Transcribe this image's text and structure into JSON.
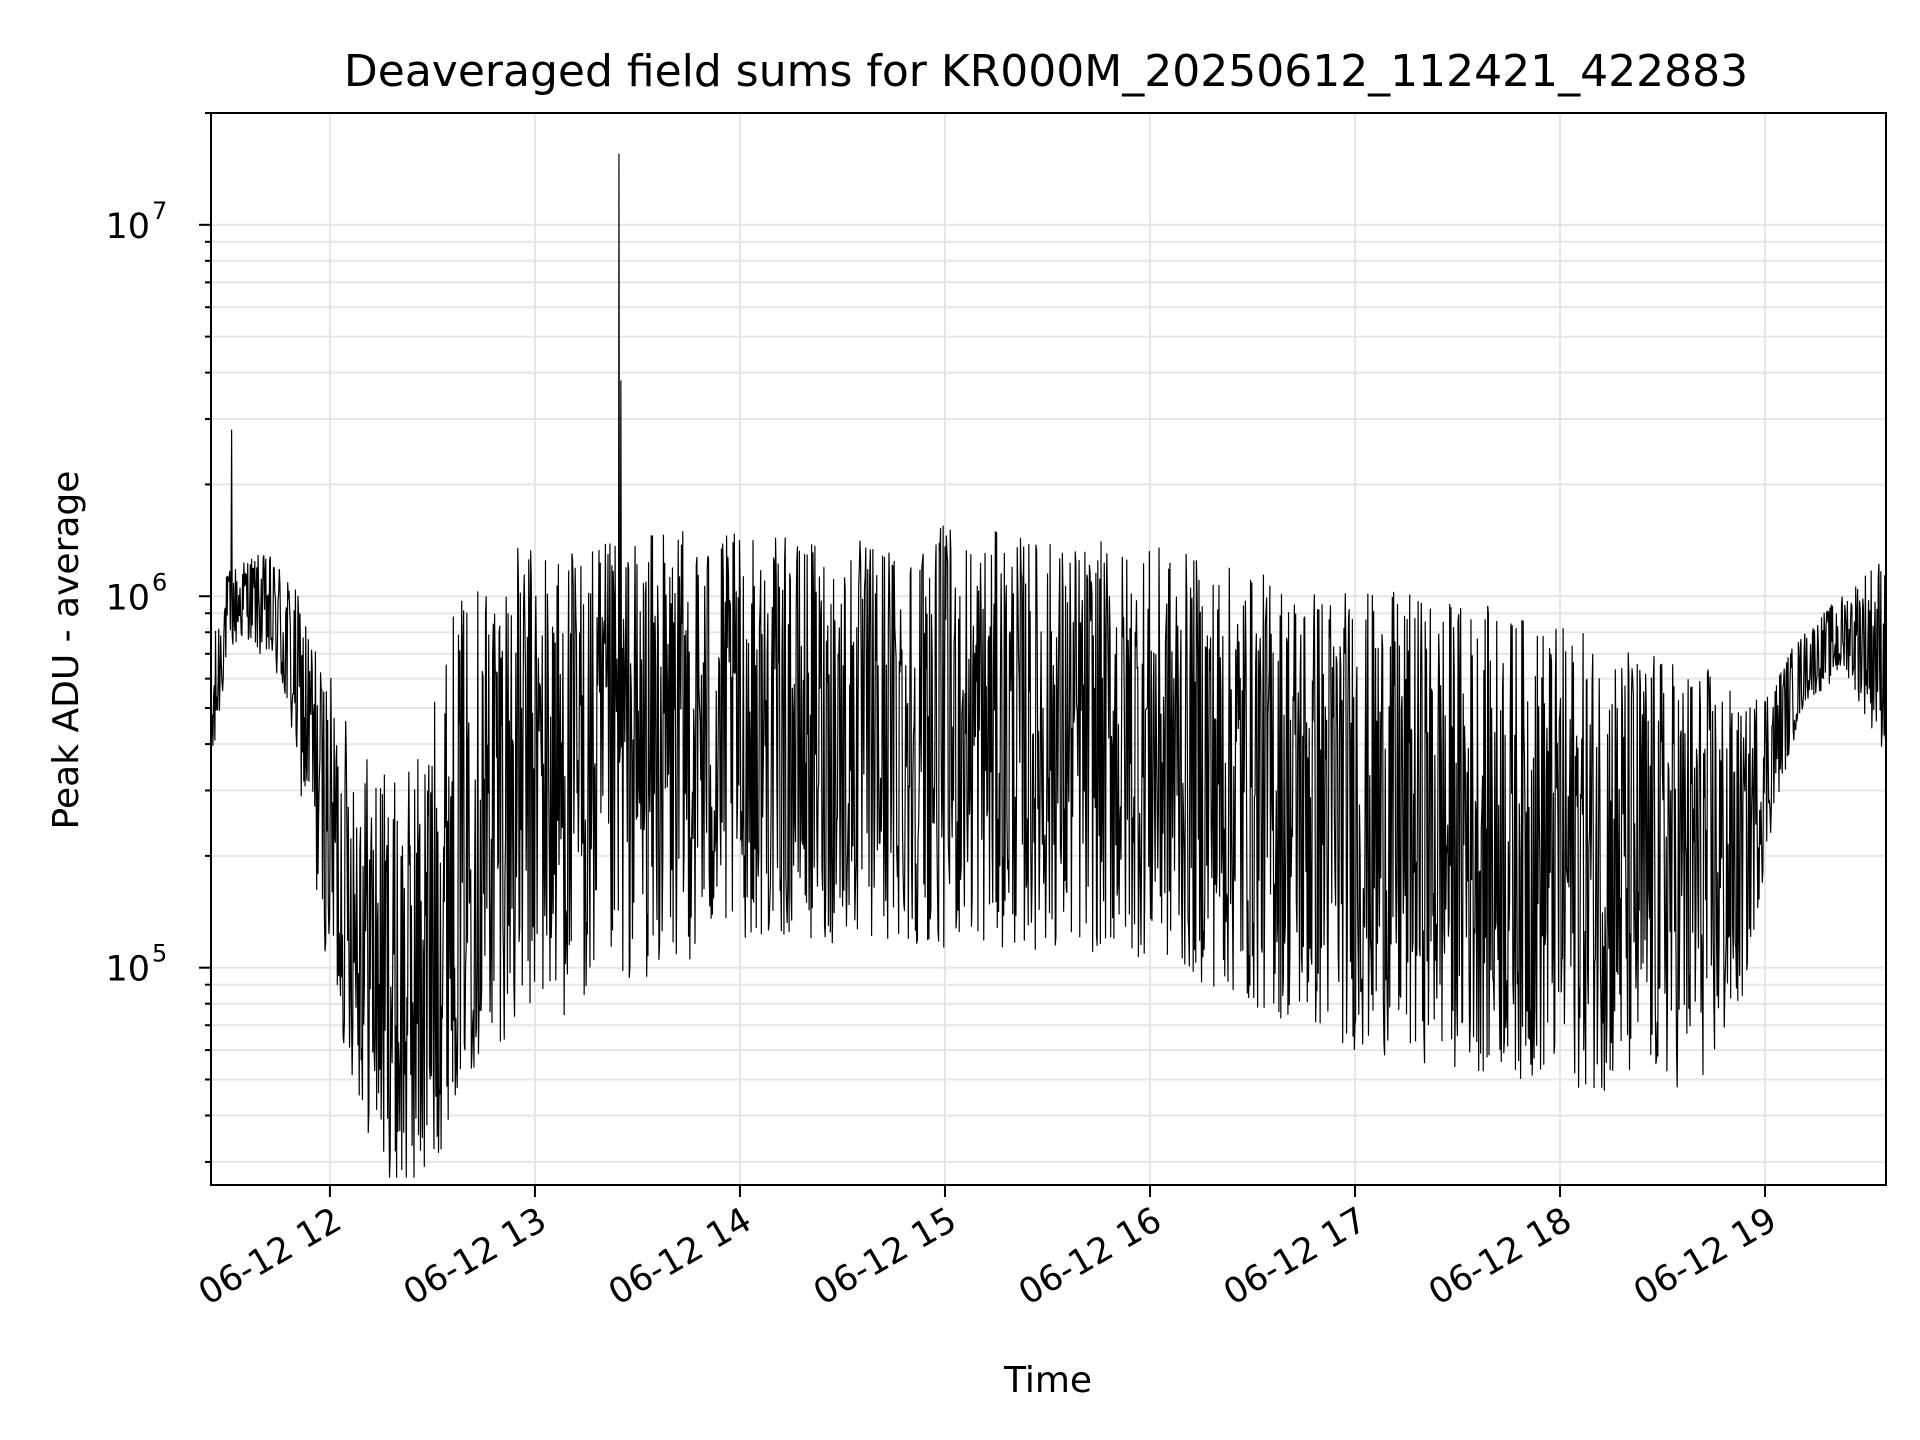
{
  "chart_data": {
    "type": "line",
    "title": "Deaveraged field sums for KR000M_20250612_112421_422883",
    "xlabel": "Time",
    "ylabel": "Peak ADU - average",
    "yscale": "log",
    "ylim": [
      26000,
      20000000
    ],
    "xlim_hours": [
      11.42,
      19.59
    ],
    "grid": true,
    "line_color": "#000000",
    "grid_color": "#e6e6e6",
    "x_ticks": [
      {
        "hour": 12,
        "label": "06-12 12"
      },
      {
        "hour": 13,
        "label": "06-12 13"
      },
      {
        "hour": 14,
        "label": "06-12 14"
      },
      {
        "hour": 15,
        "label": "06-12 15"
      },
      {
        "hour": 16,
        "label": "06-12 16"
      },
      {
        "hour": 17,
        "label": "06-12 17"
      },
      {
        "hour": 18,
        "label": "06-12 18"
      },
      {
        "hour": 19,
        "label": "06-12 19"
      }
    ],
    "y_ticks": [
      {
        "value": 100000,
        "base": "10",
        "exp": "5"
      },
      {
        "value": 1000000,
        "base": "10",
        "exp": "6"
      },
      {
        "value": 10000000,
        "base": "10",
        "exp": "7"
      }
    ],
    "envelope": {
      "hours": [
        11.42,
        11.5,
        11.6,
        11.75,
        11.85,
        11.95,
        12.05,
        12.2,
        12.35,
        12.5,
        12.6,
        12.8,
        13.0,
        13.2,
        13.4,
        13.6,
        14.0,
        14.5,
        15.0,
        15.5,
        16.0,
        16.5,
        17.0,
        17.5,
        18.0,
        18.4,
        18.75,
        18.9,
        19.05,
        19.2,
        19.4,
        19.59
      ],
      "center": [
        400000,
        900000,
        1000000,
        850000,
        550000,
        300000,
        180000,
        110000,
        80000,
        110000,
        200000,
        280000,
        320000,
        320000,
        350000,
        380000,
        420000,
        400000,
        420000,
        400000,
        380000,
        300000,
        250000,
        230000,
        200000,
        180000,
        180000,
        200000,
        400000,
        650000,
        800000,
        700000
      ],
      "spread": [
        1.6,
        1.3,
        1.3,
        1.5,
        1.8,
        2.3,
        2.8,
        3.4,
        3.8,
        4.6,
        4.6,
        4.6,
        4.4,
        4.3,
        4.0,
        4.0,
        3.5,
        3.5,
        3.7,
        3.6,
        3.6,
        3.9,
        4.2,
        4.3,
        4.2,
        4.0,
        3.6,
        2.4,
        1.5,
        1.25,
        1.3,
        1.9
      ],
      "spike_hour": 13.41,
      "spike_value": 15500000,
      "secondary_spike_hour": 13.42,
      "secondary_spike_value": 3800000,
      "early_spike_hour": 11.52,
      "early_spike_value": 2800000
    }
  }
}
